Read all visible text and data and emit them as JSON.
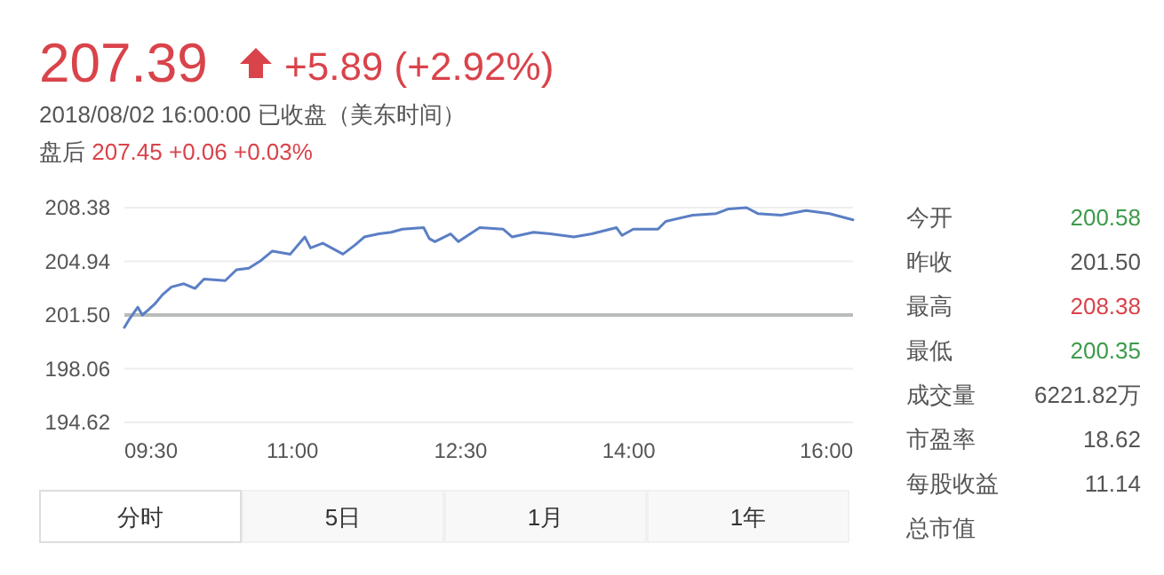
{
  "chart_data": [
    {
      "type": "line",
      "title": "207.39",
      "subtitle": "+5.89 (+2.92%)",
      "annotations": [
        "2018/08/02 16:00:00 已收盘（美东时间）",
        "盘后 207.45 +0.06 +0.03%"
      ],
      "x": [
        9.5,
        9.55,
        9.62,
        9.66,
        9.71,
        9.77,
        9.84,
        9.92,
        10.03,
        10.13,
        10.21,
        10.4,
        10.5,
        10.61,
        10.72,
        10.82,
        10.98,
        11.11,
        11.16,
        11.27,
        11.45,
        11.56,
        11.64,
        11.77,
        11.88,
        11.98,
        12.17,
        12.22,
        12.27,
        12.41,
        12.48,
        12.67,
        12.88,
        12.96,
        13.15,
        13.3,
        13.51,
        13.67,
        13.89,
        13.94,
        14.04,
        14.26,
        14.33,
        14.57,
        14.78,
        14.89,
        15.05,
        15.15,
        15.36,
        15.58,
        15.79,
        16.0
      ],
      "series": [
        {
          "color": "#5b7fc4",
          "values": [
            200.7,
            201.3,
            202.0,
            201.5,
            201.8,
            202.2,
            202.8,
            203.3,
            203.5,
            203.2,
            203.8,
            203.7,
            204.4,
            204.5,
            205.0,
            205.6,
            205.4,
            206.5,
            205.8,
            206.1,
            205.4,
            206.0,
            206.5,
            206.7,
            206.8,
            207.0,
            207.1,
            206.4,
            206.2,
            206.7,
            206.2,
            207.1,
            207.0,
            206.5,
            206.8,
            206.7,
            206.5,
            206.7,
            207.1,
            206.6,
            207.0,
            207.0,
            207.5,
            207.9,
            208.0,
            208.3,
            208.38,
            208.0,
            207.9,
            208.2,
            208.0,
            207.6
          ]
        }
      ],
      "xlim": [
        9.5,
        16
      ],
      "xticks": [
        {
          "value": 9.5,
          "label": "09:30"
        },
        {
          "value": 11,
          "label": "11:00"
        },
        {
          "value": 12.5,
          "label": "12:30"
        },
        {
          "value": 14,
          "label": "14:00"
        },
        {
          "value": 16,
          "label": "16:00"
        }
      ],
      "ylim": [
        194.62,
        208.38
      ],
      "yticks": [
        {
          "value": 194.62,
          "label": "194.62"
        },
        {
          "value": 198.06,
          "label": "198.06"
        },
        {
          "value": 201.5,
          "label": "201.50"
        },
        {
          "value": 204.94,
          "label": "204.94"
        },
        {
          "value": 208.38,
          "label": "208.38"
        }
      ],
      "ref_lines": [
        {
          "axis": "y",
          "value": 201.5,
          "color": "#b9bdb9"
        }
      ],
      "grid": "y",
      "line_style": "solid",
      "marker": "none"
    },
    {
      "type": "other",
      "annotations": [
        "今开",
        "200.58",
        "昨收",
        "201.50",
        "最高",
        "208.38",
        "最低",
        "200.35",
        "成交量",
        "6221.82万",
        "市盈率",
        "18.62",
        "每股收益",
        "11.14",
        "总市值"
      ]
    },
    {
      "type": "other",
      "annotations": [
        "分时",
        "5日",
        "1月",
        "1年"
      ]
    }
  ]
}
